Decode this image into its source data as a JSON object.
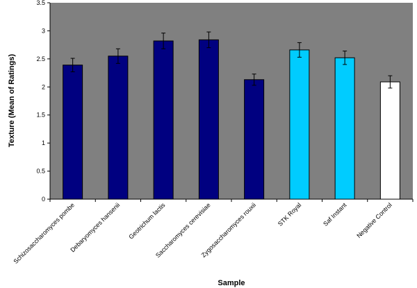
{
  "chart_data": {
    "type": "bar",
    "title": "",
    "xlabel": "Sample",
    "ylabel": "Texture (Mean of Ratings)",
    "ylim": [
      0,
      3.5
    ],
    "yticks": [
      "0",
      "0.5",
      "1",
      "1.5",
      "2",
      "2.5",
      "3",
      "3.5"
    ],
    "grid": false,
    "legend": "none",
    "plot_background": "#808080",
    "categories": [
      "Schizosaccharomyces pombe",
      "Debaryomyces hansenii",
      "Geotrichum lactis",
      "Saccharomyces cerevisiae",
      "Zygosaccharomyces rouxii",
      "STK Royal",
      "Saf Instant",
      "Negative Control"
    ],
    "values": [
      2.39,
      2.55,
      2.82,
      2.84,
      2.13,
      2.66,
      2.52,
      2.09
    ],
    "errors": [
      0.12,
      0.13,
      0.14,
      0.14,
      0.1,
      0.13,
      0.12,
      0.11
    ],
    "colors": [
      "#000080",
      "#000080",
      "#000080",
      "#000080",
      "#000080",
      "#00CCFF",
      "#00CCFF",
      "#FFFFFF"
    ]
  }
}
